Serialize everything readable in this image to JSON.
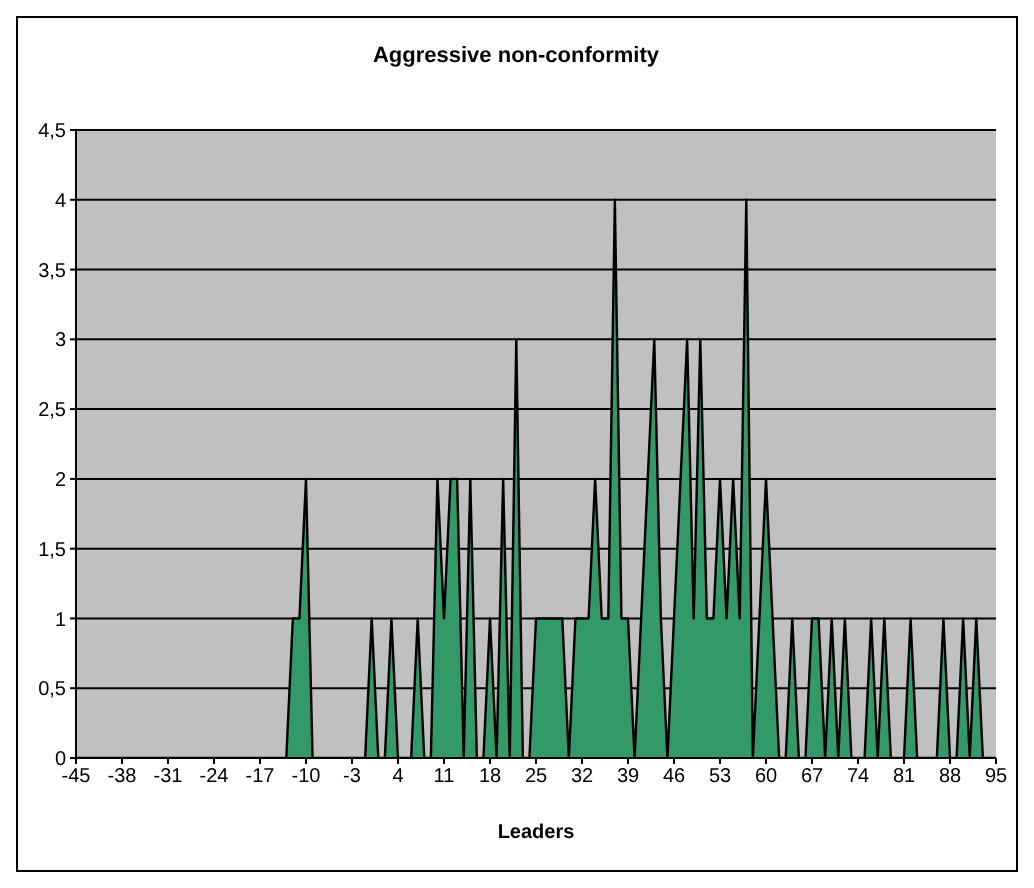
{
  "chart_data": {
    "type": "area",
    "title": "Aggressive non-conformity",
    "xlabel": "Leaders",
    "x": [
      -45,
      -44,
      -43,
      -42,
      -41,
      -40,
      -39,
      -38,
      -37,
      -36,
      -35,
      -34,
      -33,
      -32,
      -31,
      -30,
      -29,
      -28,
      -27,
      -26,
      -25,
      -24,
      -23,
      -22,
      -21,
      -20,
      -19,
      -18,
      -17,
      -16,
      -15,
      -14,
      -13,
      -12,
      -11,
      -10,
      -9,
      -8,
      -7,
      -6,
      -5,
      -4,
      -3,
      -2,
      -1,
      0,
      1,
      2,
      3,
      4,
      5,
      6,
      7,
      8,
      9,
      10,
      11,
      12,
      13,
      14,
      15,
      16,
      17,
      18,
      19,
      20,
      21,
      22,
      23,
      24,
      25,
      26,
      27,
      28,
      29,
      30,
      31,
      32,
      33,
      34,
      35,
      36,
      37,
      38,
      39,
      40,
      41,
      42,
      43,
      44,
      45,
      46,
      47,
      48,
      49,
      50,
      51,
      52,
      53,
      54,
      55,
      56,
      57,
      58,
      59,
      60,
      61,
      62,
      63,
      64,
      65,
      66,
      67,
      68,
      69,
      70,
      71,
      72,
      73,
      74,
      75,
      76,
      77,
      78,
      79,
      80,
      81,
      82,
      83,
      84,
      85,
      86,
      87,
      88,
      89,
      90,
      91,
      92,
      93,
      94,
      95
    ],
    "series": [
      {
        "color": "#339966",
        "values": [
          0,
          0,
          0,
          0,
          0,
          0,
          0,
          0,
          0,
          0,
          0,
          0,
          0,
          0,
          0,
          0,
          0,
          0,
          0,
          0,
          0,
          0,
          0,
          0,
          0,
          0,
          0,
          0,
          0,
          0,
          0,
          0,
          0,
          1,
          1,
          2,
          0,
          0,
          0,
          0,
          0,
          0,
          0,
          0,
          0,
          1,
          0,
          0,
          1,
          0,
          0,
          0,
          1,
          0,
          0,
          2,
          1,
          2,
          2,
          0,
          2,
          0,
          0,
          1,
          0,
          2,
          0,
          3,
          0,
          0,
          1,
          1,
          1,
          1,
          1,
          0,
          1,
          1,
          1,
          2,
          1,
          1,
          4,
          1,
          1,
          0,
          1,
          2,
          3,
          1,
          0,
          1,
          2,
          3,
          1,
          3,
          1,
          1,
          2,
          1,
          2,
          1,
          4,
          0,
          1,
          2,
          1,
          0,
          0,
          1,
          0,
          0,
          1,
          1,
          0,
          1,
          0,
          1,
          0,
          0,
          0,
          1,
          0,
          1,
          0,
          0,
          0,
          1,
          0,
          0,
          0,
          0,
          1,
          0,
          0,
          1,
          0,
          1,
          0,
          0,
          0
        ]
      }
    ],
    "xlim": [
      -45,
      95
    ],
    "xticks": [
      -45,
      -38,
      -31,
      -24,
      -17,
      -10,
      -3,
      4,
      11,
      18,
      25,
      32,
      39,
      46,
      53,
      60,
      67,
      74,
      81,
      88,
      95
    ],
    "ylim": [
      0,
      4.5
    ],
    "yticks": [
      0,
      {
        "value": 0.5,
        "label": "0,5"
      },
      1,
      {
        "value": 1.5,
        "label": "1,5"
      },
      2,
      {
        "value": 2.5,
        "label": "2,5"
      },
      3,
      {
        "value": 3.5,
        "label": "3,5"
      },
      4,
      {
        "value": 4.5,
        "label": "4,5"
      }
    ],
    "grid": "y",
    "legend": false
  }
}
